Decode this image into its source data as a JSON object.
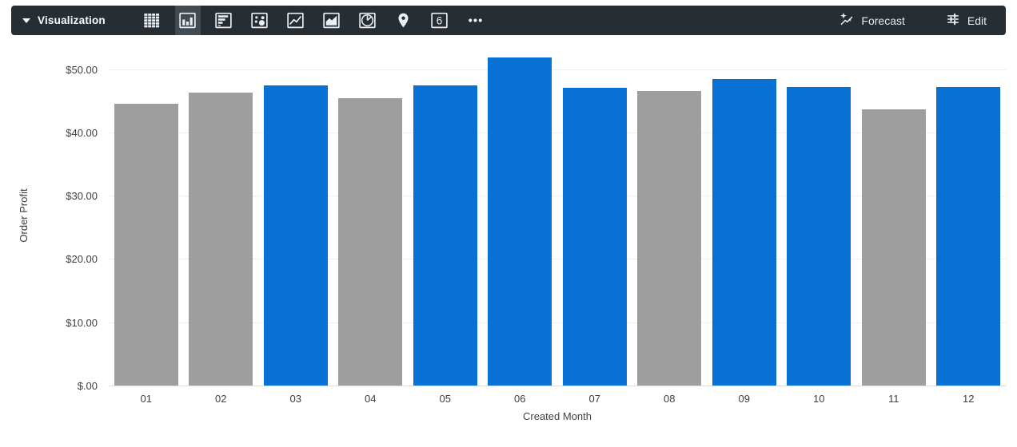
{
  "toolbar": {
    "title": "Visualization",
    "chart_types": [
      {
        "name": "table",
        "selected": false
      },
      {
        "name": "column",
        "selected": true
      },
      {
        "name": "bar",
        "selected": false
      },
      {
        "name": "scatter",
        "selected": false
      },
      {
        "name": "line",
        "selected": false
      },
      {
        "name": "area",
        "selected": false
      },
      {
        "name": "pie",
        "selected": false
      },
      {
        "name": "map",
        "selected": false
      },
      {
        "name": "single-value",
        "selected": false,
        "glyph": "6"
      },
      {
        "name": "more",
        "selected": false
      }
    ],
    "forecast_label": "Forecast",
    "edit_label": "Edit",
    "colors": {
      "background": "#262d33",
      "selected_bg": "#434b52",
      "icon": "#eceff1",
      "text": "#e8eaed"
    }
  },
  "chart_data": {
    "type": "bar",
    "title": "",
    "xlabel": "Created Month",
    "ylabel": "Order Profit",
    "categories": [
      "01",
      "02",
      "03",
      "04",
      "05",
      "06",
      "07",
      "08",
      "09",
      "10",
      "11",
      "12"
    ],
    "values": [
      44.5,
      46.3,
      47.5,
      45.4,
      47.4,
      51.9,
      47.1,
      46.6,
      48.4,
      47.2,
      43.6,
      47.2
    ],
    "point_colors": [
      "gray",
      "gray",
      "blue",
      "gray",
      "blue",
      "blue",
      "blue",
      "gray",
      "blue",
      "blue",
      "gray",
      "blue"
    ],
    "palette": {
      "blue": "#0971d6",
      "gray": "#9e9e9e"
    },
    "ylim": [
      0,
      54
    ],
    "yticks": [
      {
        "value": 0,
        "label": "$.00"
      },
      {
        "value": 10,
        "label": "$10.00"
      },
      {
        "value": 20,
        "label": "$20.00"
      },
      {
        "value": 30,
        "label": "$30.00"
      },
      {
        "value": 40,
        "label": "$40.00"
      },
      {
        "value": 50,
        "label": "$50.00"
      }
    ],
    "grid": true,
    "legend": "none"
  }
}
